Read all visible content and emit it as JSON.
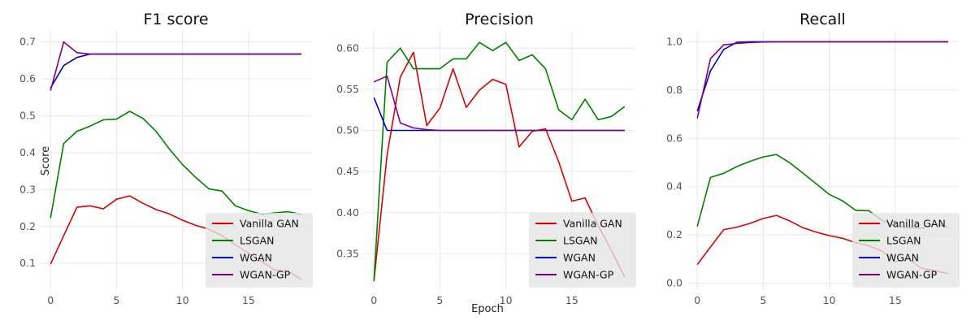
{
  "figure": {
    "xlabel": "Epoch",
    "ylabel": "Score"
  },
  "colors": {
    "Vanilla GAN": "#dd0000",
    "LSGAN": "#008000",
    "WGAN": "#0000cc",
    "WGAN-GP": "#800080",
    "grid": "#ebebeb",
    "legend_bg": "#e5e5e5",
    "tick_text": "#555555"
  },
  "chart_data": [
    {
      "type": "line",
      "title": "F1 score",
      "x": [
        0,
        1,
        2,
        3,
        4,
        5,
        6,
        7,
        8,
        9,
        10,
        11,
        12,
        13,
        14,
        15,
        16,
        17,
        18,
        19
      ],
      "xticks": [
        0,
        5,
        10,
        15
      ],
      "ylim": [
        0.03,
        0.73
      ],
      "yticks": [
        0.1,
        0.2,
        0.3,
        0.4,
        0.5,
        0.6,
        0.7
      ],
      "ytick_labels": [
        "0.1",
        "0.2",
        "0.3",
        "0.4",
        "0.5",
        "0.6",
        "0.7"
      ],
      "grid": true,
      "legend_position": "lower-right",
      "series": [
        {
          "name": "Vanilla GAN",
          "values": [
            0.098,
            0.175,
            0.252,
            0.256,
            0.248,
            0.274,
            0.283,
            0.263,
            0.246,
            0.234,
            0.217,
            0.203,
            0.193,
            0.175,
            0.15,
            0.128,
            0.105,
            0.082,
            0.079,
            0.057
          ]
        },
        {
          "name": "LSGAN",
          "values": [
            0.223,
            0.425,
            0.458,
            0.472,
            0.489,
            0.491,
            0.512,
            0.493,
            0.458,
            0.41,
            0.368,
            0.333,
            0.302,
            0.296,
            0.256,
            0.243,
            0.233,
            0.237,
            0.24,
            0.233
          ]
        },
        {
          "name": "WGAN",
          "values": [
            0.575,
            0.636,
            0.658,
            0.667,
            0.667,
            0.667,
            0.667,
            0.667,
            0.667,
            0.667,
            0.667,
            0.667,
            0.667,
            0.667,
            0.667,
            0.667,
            0.667,
            0.667,
            0.667,
            0.667
          ]
        },
        {
          "name": "WGAN-GP",
          "values": [
            0.568,
            0.7,
            0.671,
            0.667,
            0.667,
            0.667,
            0.667,
            0.667,
            0.667,
            0.667,
            0.667,
            0.667,
            0.667,
            0.667,
            0.667,
            0.667,
            0.667,
            0.667,
            0.667,
            0.667
          ]
        }
      ]
    },
    {
      "type": "line",
      "title": "Precision",
      "x": [
        0,
        1,
        2,
        3,
        4,
        5,
        6,
        7,
        8,
        9,
        10,
        11,
        12,
        13,
        14,
        15,
        16,
        17,
        18,
        19
      ],
      "xticks": [
        0,
        5,
        10,
        15
      ],
      "ylim": [
        0.307,
        0.621
      ],
      "yticks": [
        0.35,
        0.4,
        0.45,
        0.5,
        0.55,
        0.6
      ],
      "ytick_labels": [
        "0.35",
        "0.40",
        "0.45",
        "0.50",
        "0.55",
        "0.60"
      ],
      "grid": true,
      "legend_position": "lower-right",
      "series": [
        {
          "name": "Vanilla GAN",
          "values": [
            0.317,
            0.47,
            0.565,
            0.595,
            0.506,
            0.527,
            0.575,
            0.528,
            0.549,
            0.562,
            0.556,
            0.48,
            0.499,
            0.502,
            0.462,
            0.414,
            0.418,
            0.384,
            0.354,
            0.322
          ]
        },
        {
          "name": "LSGAN",
          "values": [
            0.317,
            0.583,
            0.6,
            0.575,
            0.575,
            0.575,
            0.587,
            0.587,
            0.607,
            0.597,
            0.607,
            0.585,
            0.592,
            0.575,
            0.525,
            0.513,
            0.538,
            0.513,
            0.517,
            0.529
          ]
        },
        {
          "name": "WGAN",
          "values": [
            0.54,
            0.5,
            0.5,
            0.5,
            0.5,
            0.5,
            0.5,
            0.5,
            0.5,
            0.5,
            0.5,
            0.5,
            0.5,
            0.5,
            0.5,
            0.5,
            0.5,
            0.5,
            0.5,
            0.5
          ]
        },
        {
          "name": "WGAN-GP",
          "values": [
            0.559,
            0.566,
            0.509,
            0.503,
            0.501,
            0.5,
            0.5,
            0.5,
            0.5,
            0.5,
            0.5,
            0.5,
            0.5,
            0.5,
            0.5,
            0.5,
            0.5,
            0.5,
            0.5,
            0.5
          ]
        }
      ]
    },
    {
      "type": "line",
      "title": "Recall",
      "x": [
        0,
        1,
        2,
        3,
        4,
        5,
        6,
        7,
        8,
        9,
        10,
        11,
        12,
        13,
        14,
        15,
        16,
        17,
        18,
        19
      ],
      "xticks": [
        0,
        5,
        10,
        15
      ],
      "ylim": [
        -0.025,
        1.045
      ],
      "yticks": [
        0.0,
        0.2,
        0.4,
        0.6,
        0.8,
        1.0
      ],
      "ytick_labels": [
        "0.0",
        "0.2",
        "0.4",
        "0.6",
        "0.8",
        "1.0"
      ],
      "grid": true,
      "legend_position": "lower-right",
      "series": [
        {
          "name": "Vanilla GAN",
          "values": [
            0.077,
            0.15,
            0.222,
            0.232,
            0.248,
            0.268,
            0.281,
            0.258,
            0.23,
            0.212,
            0.197,
            0.186,
            0.168,
            0.155,
            0.133,
            0.089,
            0.101,
            0.062,
            0.052,
            0.04
          ]
        },
        {
          "name": "LSGAN",
          "values": [
            0.235,
            0.438,
            0.455,
            0.483,
            0.505,
            0.523,
            0.533,
            0.499,
            0.456,
            0.412,
            0.368,
            0.341,
            0.302,
            0.3,
            0.26,
            0.237,
            0.23,
            0.228,
            0.246,
            0.232
          ]
        },
        {
          "name": "WGAN",
          "values": [
            0.713,
            0.879,
            0.968,
            0.998,
            1.0,
            1.0,
            1.0,
            1.0,
            1.0,
            1.0,
            1.0,
            1.0,
            1.0,
            1.0,
            1.0,
            1.0,
            1.0,
            1.0,
            1.0,
            1.0
          ]
        },
        {
          "name": "WGAN-GP",
          "values": [
            0.683,
            0.93,
            0.987,
            0.993,
            0.997,
            0.999,
            1.0,
            1.0,
            1.0,
            1.0,
            1.0,
            1.0,
            1.0,
            1.0,
            1.0,
            1.0,
            1.0,
            1.0,
            1.0,
            1.0
          ]
        }
      ]
    }
  ]
}
